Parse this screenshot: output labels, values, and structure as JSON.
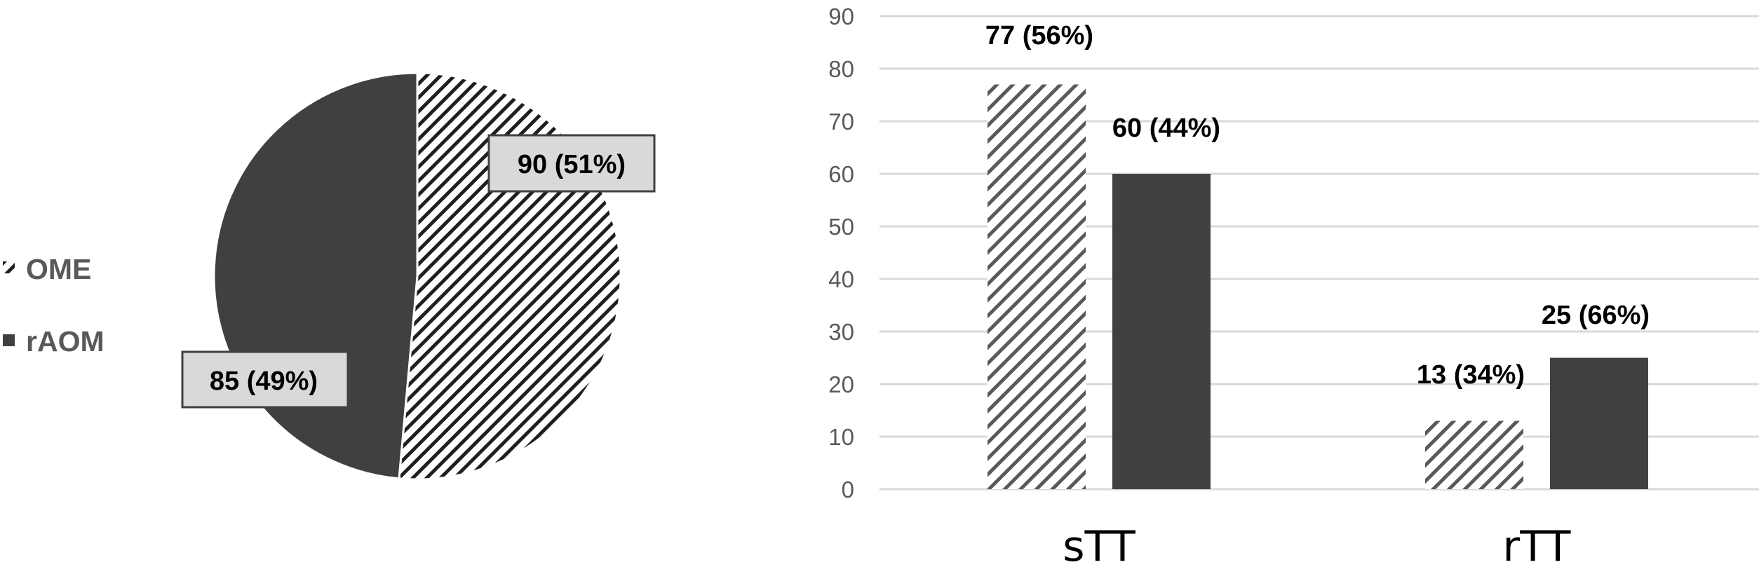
{
  "colors": {
    "pie_solid": "#404040",
    "pie_hatch_stroke": "#1f1f1f",
    "bar_solid": "#404040",
    "bar_hatch_stroke": "#595959",
    "label_box_fill": "#d9d9d9",
    "label_box_stroke": "#404040",
    "gridline": "#d9d9d9",
    "axis_text": "#595959",
    "legend_text": "#595959"
  },
  "legend": {
    "items": [
      {
        "label": "OME",
        "marker": "hatched-square-icon"
      },
      {
        "label": "rAOM",
        "marker": "solid-square-icon"
      }
    ]
  },
  "chart_data": [
    {
      "type": "pie",
      "title": "",
      "categories": [
        "OME",
        "rAOM"
      ],
      "values": [
        90,
        85
      ],
      "percentages": [
        51,
        49
      ],
      "data_labels": [
        "90 (51%)",
        "85 (49%)"
      ],
      "start_angle_deg": 0,
      "direction": "clockwise",
      "legend_position": "left",
      "fills": [
        "hatched",
        "solid"
      ]
    },
    {
      "type": "bar",
      "title": "",
      "xlabel": "",
      "ylabel": "",
      "categories": [
        "sTT",
        "rTT"
      ],
      "series": [
        {
          "name": "OME",
          "values": [
            77,
            13
          ],
          "percentages": [
            56,
            34
          ],
          "data_labels": [
            "77 (56%)",
            "13 (34%)"
          ],
          "fill": "hatched"
        },
        {
          "name": "rAOM",
          "values": [
            60,
            25
          ],
          "percentages": [
            44,
            66
          ],
          "data_labels": [
            "60 (44%)",
            "25 (66%)"
          ],
          "fill": "solid"
        }
      ],
      "ylim": [
        0,
        90
      ],
      "y_ticks": [
        0,
        10,
        20,
        30,
        40,
        50,
        60,
        70,
        80,
        90
      ],
      "grid": true
    }
  ]
}
